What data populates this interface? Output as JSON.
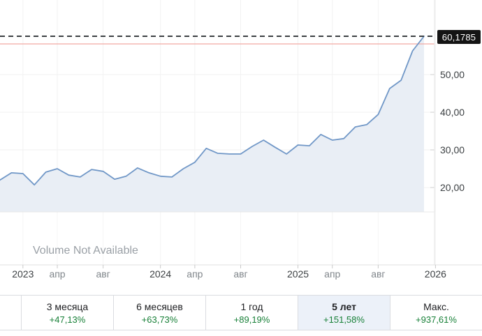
{
  "chart_data": {
    "type": "area",
    "title": "",
    "categories": [
      "2022-11",
      "2022-12",
      "2023-01",
      "2023-02",
      "2023-03",
      "2023-04",
      "2023-05",
      "2023-06",
      "2023-07",
      "2023-08",
      "2023-09",
      "2023-10",
      "2023-11",
      "2023-12",
      "2024-01",
      "2024-02",
      "2024-03",
      "2024-04",
      "2024-05",
      "2024-06",
      "2024-07",
      "2024-08",
      "2024-09",
      "2024-10",
      "2024-11",
      "2024-12",
      "2025-01",
      "2025-02",
      "2025-03",
      "2025-04",
      "2025-05",
      "2025-06",
      "2025-07",
      "2025-08",
      "2025-09",
      "2025-10",
      "2025-11",
      "2025-12"
    ],
    "values": [
      22.0,
      23.9,
      23.7,
      20.7,
      24.1,
      25.0,
      23.3,
      22.8,
      24.8,
      24.3,
      22.2,
      23.0,
      25.2,
      23.9,
      23.0,
      22.8,
      25.0,
      26.7,
      30.4,
      29.1,
      28.9,
      28.9,
      30.9,
      32.6,
      30.7,
      28.9,
      31.3,
      31.1,
      34.1,
      32.6,
      33.0,
      36.1,
      36.7,
      39.4,
      46.3,
      48.5,
      56.3,
      60.1785
    ],
    "current_value": 60.1785,
    "current_value_label": "60,1785",
    "reference_line_value": 58.15,
    "ylim": [
      13.5,
      69.8
    ],
    "grid": true,
    "legend": false,
    "xlabel": "",
    "ylabel": "",
    "y_ticks": [
      {
        "value": 50,
        "label": "50,00"
      },
      {
        "value": 40,
        "label": "40,00"
      },
      {
        "value": 30,
        "label": "30,00"
      },
      {
        "value": 20,
        "label": "20,00"
      }
    ],
    "x_ticks": [
      {
        "label": "2023",
        "month_index": 2,
        "year": true
      },
      {
        "label": "апр",
        "month_index": 5,
        "year": false
      },
      {
        "label": "авг",
        "month_index": 9,
        "year": false
      },
      {
        "label": "2024",
        "month_index": 14,
        "year": true
      },
      {
        "label": "апр",
        "month_index": 17,
        "year": false
      },
      {
        "label": "авг",
        "month_index": 21,
        "year": false
      },
      {
        "label": "2025",
        "month_index": 26,
        "year": true
      },
      {
        "label": "апр",
        "month_index": 29,
        "year": false
      },
      {
        "label": "авг",
        "month_index": 33,
        "year": false
      },
      {
        "label": "2026",
        "month_index": 38,
        "year": true
      }
    ],
    "colors": {
      "line": "#7097c7",
      "fill": "#e9eef5",
      "dashed_current_price": "#3c4043",
      "reference_line": "#f2a9a2",
      "grid": "#f2f2f2",
      "axis": "#e3e3e3",
      "year_tick_text": "#3c4043",
      "month_tick_text": "#80868b",
      "y_tick_text": "#3c4043",
      "price_flag_bg": "#141414",
      "price_flag_text": "#ffffff",
      "change_green": "#188038",
      "selected_period_bg": "#ecf1f9"
    }
  },
  "volume_panel": {
    "message": "Volume Not Available"
  },
  "periods": [
    {
      "label": "3 месяца",
      "change": "+47,13%",
      "selected": false
    },
    {
      "label": "6 месяцев",
      "change": "+63,73%",
      "selected": false
    },
    {
      "label": "1 год",
      "change": "+89,19%",
      "selected": false
    },
    {
      "label": "5 лет",
      "change": "+151,58%",
      "selected": true
    },
    {
      "label": "Макс.",
      "change": "+937,61%",
      "selected": false
    }
  ]
}
